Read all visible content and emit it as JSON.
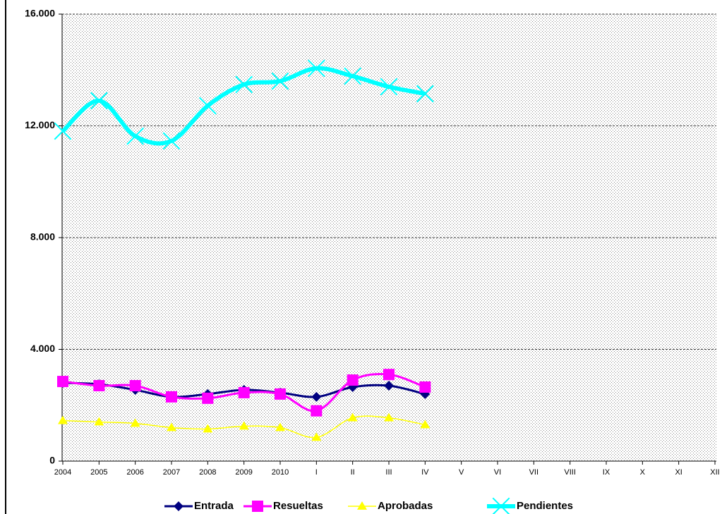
{
  "chart_data": {
    "type": "line",
    "categories": [
      "2004",
      "2005",
      "2006",
      "2007",
      "2008",
      "2009",
      "2010",
      "I",
      "II",
      "III",
      "IV",
      "V",
      "VI",
      "VII",
      "VIII",
      "IX",
      "X",
      "XI",
      "XII"
    ],
    "ylim": [
      0,
      16000
    ],
    "yticks": [
      0,
      {
        "value": 4000,
        "label": "4.000"
      },
      {
        "value": 8000,
        "label": "8.000"
      },
      {
        "value": 12000,
        "label": "12.000"
      },
      {
        "value": 16000,
        "label": "16.000"
      }
    ],
    "grid": true,
    "legend": "bottom",
    "series": [
      {
        "name": "Entrada",
        "color": "#000080",
        "marker": "diamond",
        "values": [
          2800,
          2750,
          2550,
          2300,
          2400,
          2550,
          2450,
          2300,
          2650,
          2700,
          2400,
          null,
          null,
          null,
          null,
          null,
          null,
          null,
          null
        ]
      },
      {
        "name": "Resueltas",
        "color": "#ff00ff",
        "marker": "square",
        "values": [
          2850,
          2700,
          2700,
          2300,
          2250,
          2450,
          2400,
          1800,
          2900,
          3100,
          2650,
          null,
          null,
          null,
          null,
          null,
          null,
          null,
          null
        ]
      },
      {
        "name": "Aprobadas",
        "color": "#ffff00",
        "marker": "triangle",
        "values": [
          1450,
          1400,
          1350,
          1200,
          1150,
          1250,
          1200,
          850,
          1550,
          1550,
          1300,
          null,
          null,
          null,
          null,
          null,
          null,
          null,
          null
        ]
      },
      {
        "name": "Pendientes",
        "color": "#00ffff",
        "marker": "x",
        "values": [
          11810,
          12900,
          11630,
          11460,
          12720,
          13480,
          13600,
          14060,
          13780,
          13400,
          13150,
          null,
          null,
          null,
          null,
          null,
          null,
          null,
          null
        ]
      }
    ]
  }
}
